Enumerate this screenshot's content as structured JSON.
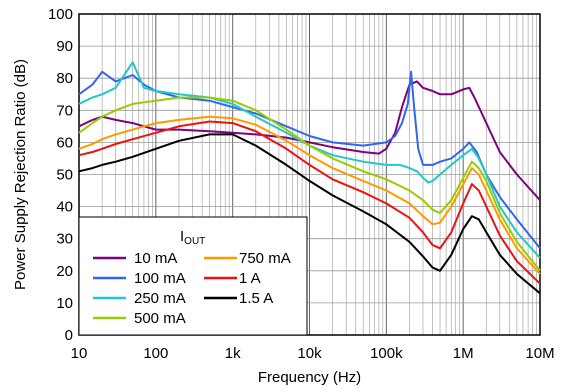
{
  "chart_data": {
    "type": "line",
    "xlabel": "Frequency (Hz)",
    "ylabel": "Power Supply Rejection Ratio (dB)",
    "x_scale": "log",
    "xlim": [
      10,
      10000000
    ],
    "ylim": [
      0,
      100
    ],
    "grid": true,
    "legend_placement": "bottom-left",
    "legend_title": {
      "main": "I",
      "sub": "OUT"
    },
    "x_ticks": [
      {
        "v": 10,
        "label": "10"
      },
      {
        "v": 100,
        "label": "100"
      },
      {
        "v": 1000,
        "label": "1k"
      },
      {
        "v": 10000,
        "label": "10k"
      },
      {
        "v": 100000,
        "label": "100k"
      },
      {
        "v": 1000000,
        "label": "1M"
      },
      {
        "v": 10000000,
        "label": "10M"
      }
    ],
    "y_ticks": [
      0,
      10,
      20,
      30,
      40,
      50,
      60,
      70,
      80,
      90,
      100
    ],
    "series": [
      {
        "name": "10 mA",
        "color": "#800080",
        "x": [
          10,
          15,
          20,
          30,
          50,
          70,
          100,
          200,
          500,
          1000,
          2000,
          5000,
          10000,
          20000,
          50000,
          80000,
          100000,
          130000,
          160000,
          200000,
          250000,
          300000,
          400000,
          500000,
          700000,
          1000000,
          1200000,
          1400000,
          2000000,
          3000000,
          5000000,
          10000000
        ],
        "y": [
          65,
          67,
          68,
          67,
          66,
          65,
          64,
          64,
          63.5,
          63,
          62.5,
          61.5,
          60,
          58.5,
          57,
          56.5,
          58,
          63,
          71,
          78,
          79,
          77,
          76,
          75,
          75,
          76.5,
          77,
          74,
          66,
          57,
          50,
          42
        ]
      },
      {
        "name": "100 mA",
        "color": "#3366EE",
        "x": [
          10,
          15,
          20,
          30,
          50,
          70,
          100,
          200,
          500,
          1000,
          2000,
          5000,
          10000,
          20000,
          50000,
          100000,
          130000,
          160000,
          190000,
          210000,
          230000,
          260000,
          300000,
          400000,
          500000,
          700000,
          1000000,
          1200000,
          1500000,
          2000000,
          3000000,
          5000000,
          10000000
        ],
        "y": [
          75,
          78,
          82,
          79,
          81,
          78,
          76,
          74,
          73,
          71,
          69,
          65,
          62,
          60,
          59,
          60,
          62,
          66,
          72,
          82,
          71,
          58,
          53,
          53,
          54,
          55,
          58,
          60,
          57,
          50,
          43,
          36,
          27
        ]
      },
      {
        "name": "250 mA",
        "color": "#22C8C8",
        "x": [
          10,
          15,
          20,
          30,
          50,
          70,
          100,
          200,
          500,
          1000,
          2000,
          5000,
          10000,
          20000,
          50000,
          100000,
          150000,
          200000,
          250000,
          300000,
          350000,
          400000,
          500000,
          700000,
          1000000,
          1300000,
          1600000,
          2000000,
          3000000,
          5000000,
          10000000
        ],
        "y": [
          72,
          74,
          75,
          77,
          85,
          77,
          76,
          75,
          74,
          72,
          68,
          63,
          59,
          56,
          54,
          53,
          53,
          52,
          51,
          49,
          47.5,
          48,
          50,
          53,
          56,
          58,
          55,
          50,
          40,
          32,
          24
        ]
      },
      {
        "name": "500 mA",
        "color": "#99CC00",
        "x": [
          10,
          15,
          20,
          30,
          50,
          100,
          200,
          500,
          1000,
          2000,
          5000,
          10000,
          20000,
          50000,
          100000,
          200000,
          300000,
          400000,
          500000,
          700000,
          1000000,
          1300000,
          1600000,
          2000000,
          3000000,
          5000000,
          10000000
        ],
        "y": [
          63,
          66,
          68,
          70,
          72,
          73,
          74,
          74,
          73,
          70,
          64,
          59,
          55,
          51,
          48.5,
          45,
          42,
          39,
          38,
          42,
          49,
          54,
          52,
          48,
          38,
          29,
          20
        ]
      },
      {
        "name": "750 mA",
        "color": "#FF9900",
        "x": [
          10,
          15,
          20,
          30,
          50,
          100,
          200,
          500,
          1000,
          2000,
          5000,
          10000,
          20000,
          50000,
          100000,
          200000,
          300000,
          400000,
          500000,
          700000,
          1000000,
          1300000,
          1600000,
          2000000,
          3000000,
          5000000,
          10000000
        ],
        "y": [
          58,
          59.5,
          61,
          62.5,
          64,
          66,
          67,
          68,
          67.5,
          65.5,
          60.5,
          56,
          52,
          48,
          45,
          41,
          37,
          34.5,
          35,
          40,
          47,
          52,
          50,
          45,
          36,
          27,
          19
        ]
      },
      {
        "name": "1 A",
        "color": "#EE1111",
        "x": [
          10,
          15,
          20,
          30,
          50,
          100,
          200,
          500,
          1000,
          2000,
          5000,
          10000,
          20000,
          50000,
          100000,
          200000,
          300000,
          400000,
          500000,
          700000,
          1000000,
          1300000,
          1600000,
          2000000,
          3000000,
          5000000,
          10000000
        ],
        "y": [
          56,
          57,
          58,
          59.5,
          61,
          63,
          65,
          66.5,
          66,
          63.5,
          58,
          53,
          48.5,
          44.5,
          41,
          36.5,
          32,
          28,
          27,
          32,
          41,
          47,
          45,
          40,
          31,
          23,
          16
        ]
      },
      {
        "name": "1.5 A",
        "color": "#000000",
        "x": [
          10,
          15,
          20,
          30,
          50,
          100,
          200,
          500,
          1000,
          2000,
          5000,
          10000,
          20000,
          50000,
          100000,
          200000,
          300000,
          400000,
          500000,
          700000,
          1000000,
          1300000,
          1600000,
          2000000,
          3000000,
          5000000,
          10000000
        ],
        "y": [
          51,
          52,
          53,
          54,
          55.5,
          58,
          60.5,
          62.5,
          62.5,
          59,
          53,
          48,
          43.5,
          38.5,
          34.5,
          29,
          24.5,
          21,
          20,
          25,
          33,
          37,
          36,
          32,
          25,
          19,
          13
        ]
      }
    ]
  }
}
